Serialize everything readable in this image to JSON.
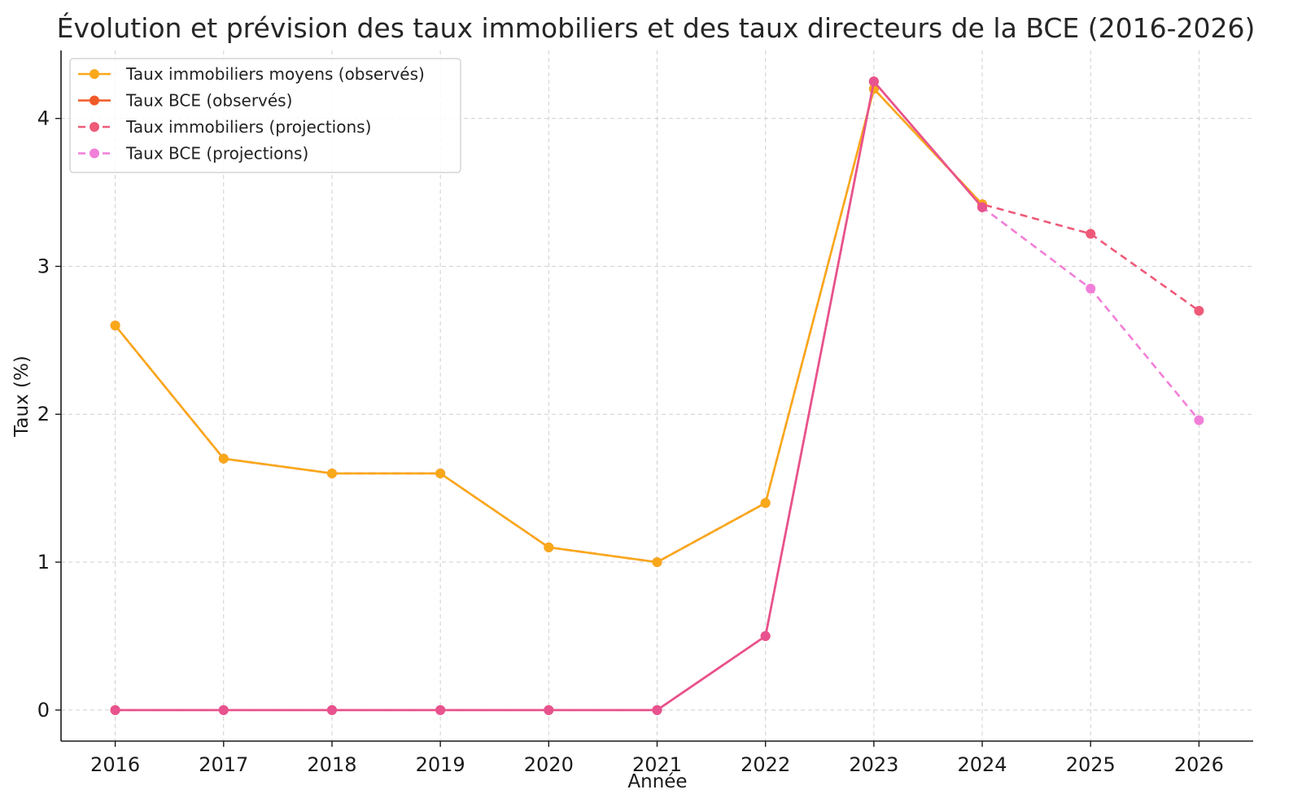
{
  "chart_data": {
    "type": "line",
    "title": "Évolution et prévision des taux immobiliers et des taux directeurs de la BCE (2016-2026)",
    "xlabel": "Année",
    "ylabel": "Taux (%)",
    "x": [
      2016,
      2017,
      2018,
      2019,
      2020,
      2021,
      2022,
      2023,
      2024,
      2025,
      2026
    ],
    "x_ticks": [
      "2016",
      "2017",
      "2018",
      "2019",
      "2020",
      "2021",
      "2022",
      "2023",
      "2024",
      "2025",
      "2026"
    ],
    "y_ticks": [
      "0",
      "1",
      "2",
      "3",
      "4"
    ],
    "xlim": [
      2015.5,
      2026.5
    ],
    "ylim": [
      -0.21,
      4.46
    ],
    "grid": true,
    "legend_position": "top-left",
    "series": [
      {
        "name": "Taux immobiliers moyens (observés)",
        "color": "#f9a81a",
        "style": "solid",
        "x": [
          2016,
          2017,
          2018,
          2019,
          2020,
          2021,
          2022,
          2023,
          2024
        ],
        "y": [
          2.6,
          1.7,
          1.6,
          1.6,
          1.1,
          1.0,
          1.4,
          4.2,
          3.42
        ]
      },
      {
        "name": "Taux BCE (observés)",
        "color": "#f05a28",
        "style": "solid",
        "x": [
          2016,
          2017,
          2018,
          2019,
          2020,
          2021,
          2022,
          2023,
          2024
        ],
        "y": [
          0,
          0,
          0,
          0,
          0,
          0,
          0.5,
          4.25,
          3.4
        ]
      },
      {
        "name": "Taux immobiliers (projections)",
        "color": "#ee5a78",
        "style": "dashed",
        "x": [
          2016,
          2017,
          2018,
          2019,
          2020,
          2021,
          2022,
          2023,
          2024,
          2025,
          2026
        ],
        "y": [
          2.6,
          1.7,
          1.6,
          1.6,
          1.1,
          1.0,
          1.4,
          4.2,
          3.42,
          3.22,
          2.7
        ]
      },
      {
        "name": "Taux BCE (projections)",
        "color": "#f17fd8",
        "style": "dashed",
        "x": [
          2016,
          2017,
          2018,
          2019,
          2020,
          2021,
          2022,
          2023,
          2024,
          2025,
          2026
        ],
        "y": [
          0,
          0,
          0,
          0,
          0,
          0,
          0.5,
          4.25,
          3.4,
          2.85,
          1.96
        ]
      }
    ],
    "overlay_color": "#e8528f"
  }
}
